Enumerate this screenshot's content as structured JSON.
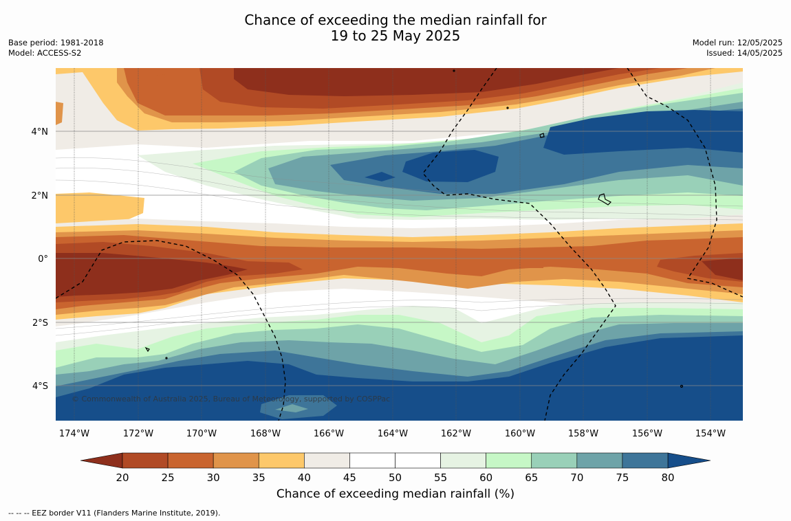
{
  "title": {
    "line1": "Chance of exceeding the median rainfall for",
    "line2": "19 to 25 May 2025"
  },
  "meta_left": {
    "base_period": "Base period: 1981-2018",
    "model": "Model: ACCESS-S2"
  },
  "meta_right": {
    "model_run": "Model run: 12/05/2025",
    "issued": "Issued: 14/05/2025"
  },
  "map": {
    "lon_ticks": [
      "174°W",
      "172°W",
      "170°W",
      "168°W",
      "166°W",
      "164°W",
      "162°W",
      "160°W",
      "158°W",
      "156°W",
      "154°W"
    ],
    "lat_ticks": [
      "4°N",
      "2°N",
      "0°",
      "2°S",
      "4°S"
    ],
    "copyright": "© Commonwealth of Australia 2025, Bureau of Meteorology, supported by COSPPac"
  },
  "colorbar": {
    "ticks": [
      "20",
      "25",
      "30",
      "35",
      "40",
      "45",
      "50",
      "55",
      "60",
      "65",
      "70",
      "75",
      "80"
    ],
    "label": "Chance of exceeding median rainfall (%)",
    "colors": [
      "#8e2f1c",
      "#b14a25",
      "#c9642f",
      "#e0944a",
      "#fdc86a",
      "#f0ece6",
      "#ffffff",
      "#ffffff",
      "#e6f3e3",
      "#c6f7c6",
      "#99d0b8",
      "#6ea3a8",
      "#3e7599",
      "#164e8a"
    ]
  },
  "footnote": "--  --  -- EEZ border V11 (Flanders Marine Institute, 2019)."
}
